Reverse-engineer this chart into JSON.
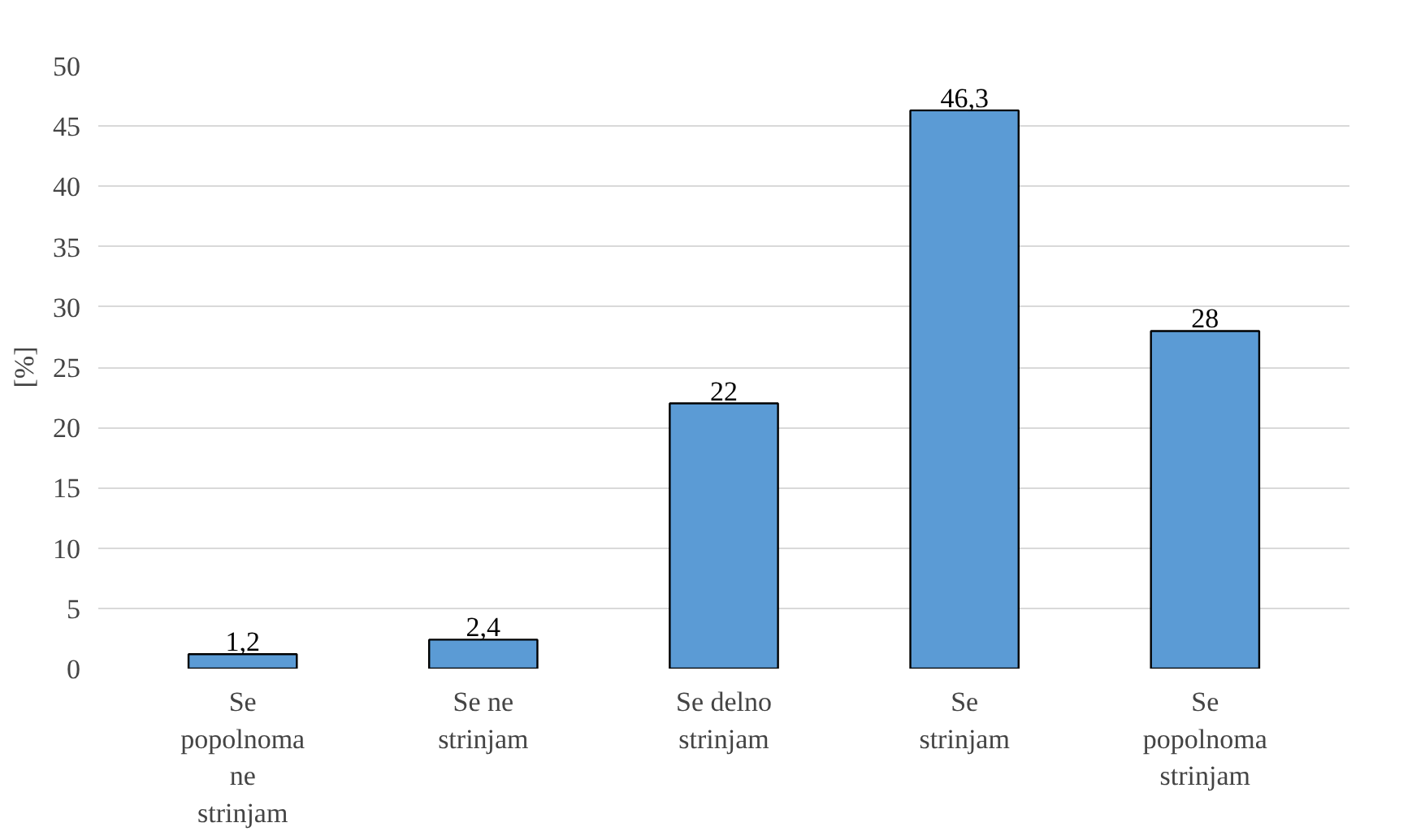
{
  "chart_data": {
    "type": "bar",
    "ylabel": "[%]",
    "categories": [
      "Se popolnoma ne strinjam",
      "Se ne strinjam",
      "Se delno strinjam",
      "Se strinjam",
      "Se popolnoma strinjam"
    ],
    "values": [
      1.2,
      2.4,
      22,
      46.3,
      28
    ],
    "value_labels": [
      "1,2",
      "2,4",
      "22",
      "46,3",
      "28"
    ],
    "color": "#5b9bd5",
    "ylim": [
      0,
      50
    ],
    "yticks": [
      0,
      5,
      10,
      15,
      20,
      25,
      30,
      35,
      40,
      45,
      50
    ],
    "grid": "y"
  }
}
